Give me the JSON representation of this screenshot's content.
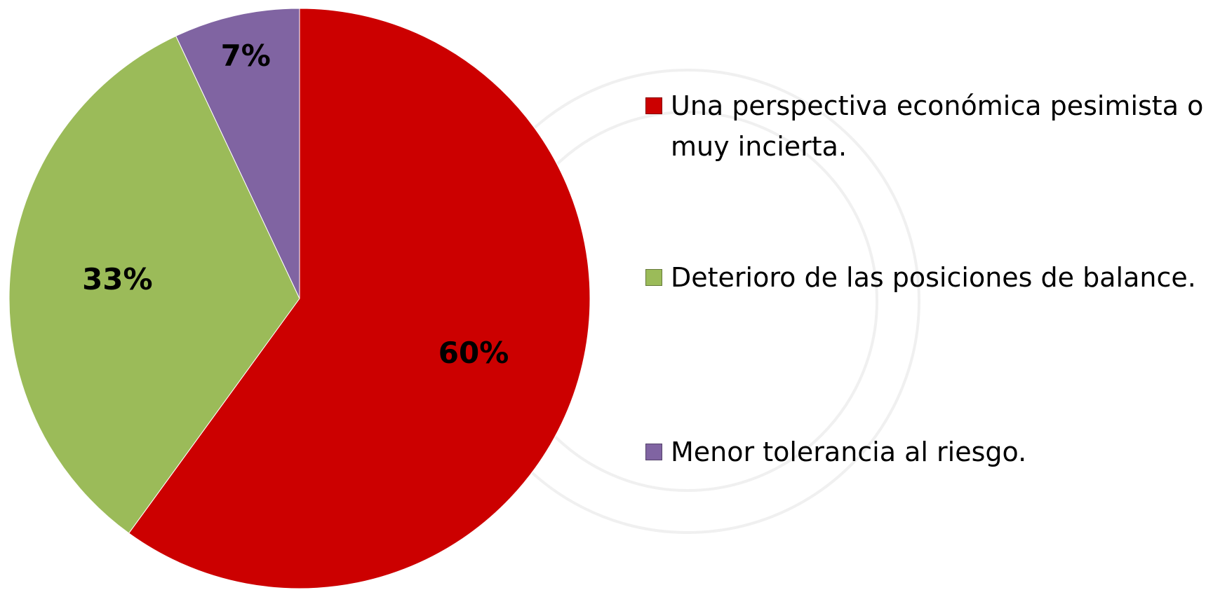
{
  "chart_data": {
    "type": "pie",
    "categories": [
      "Una perspectiva económica pesimista o muy incierta.",
      "Deterioro de las posiciones de balance.",
      "Menor tolerancia al riesgo."
    ],
    "values": [
      60,
      33,
      7
    ],
    "value_labels": [
      "60%",
      "33%",
      "7%"
    ],
    "colors": [
      "#cc0000",
      "#9bbb59",
      "#8064a2"
    ],
    "legend": "right"
  }
}
